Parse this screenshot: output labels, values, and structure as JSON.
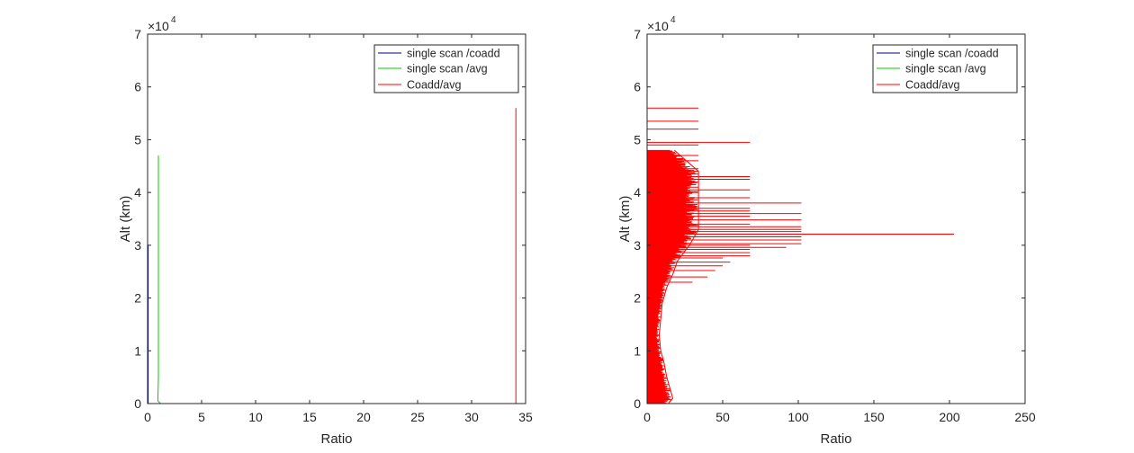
{
  "chart_data": [
    {
      "type": "line",
      "xlabel": "Ratio",
      "ylabel": "Alt (km)",
      "xlim": [
        0,
        35
      ],
      "ylim": [
        0,
        70000
      ],
      "xticks": [
        0,
        5,
        10,
        15,
        20,
        25,
        30,
        35
      ],
      "yticks": [
        0,
        10000,
        20000,
        30000,
        40000,
        50000,
        60000,
        70000
      ],
      "ytick_labels": [
        "0",
        "1",
        "2",
        "3",
        "4",
        "5",
        "6",
        "7"
      ],
      "y_exponent": {
        "base": "×10",
        "power": "4"
      },
      "grid": false,
      "legend_position": "top-right",
      "series": [
        {
          "name": "single scan /coadd",
          "color": "#00007f",
          "profile": [
            [
              0.05,
              0
            ],
            [
              0.05,
              10000
            ],
            [
              0.05,
              20000
            ],
            [
              0.05,
              30000
            ]
          ]
        },
        {
          "name": "single scan /avg",
          "color": "#00cc00",
          "profile": [
            [
              1.2,
              0
            ],
            [
              0.95,
              500
            ],
            [
              1.0,
              5000
            ],
            [
              1.0,
              15000
            ],
            [
              1.0,
              25000
            ],
            [
              1.0,
              35000
            ],
            [
              1.0,
              42000
            ],
            [
              1.0,
              47000
            ]
          ]
        },
        {
          "name": "Coadd/avg",
          "color": "#ff0000",
          "profile": [
            [
              34.1,
              0
            ],
            [
              34.1,
              10000
            ],
            [
              34.1,
              20000
            ],
            [
              34.1,
              30000
            ],
            [
              34.1,
              40000
            ],
            [
              34.1,
              50000
            ],
            [
              34.1,
              56000
            ]
          ]
        }
      ]
    },
    {
      "type": "line",
      "xlabel": "Ratio",
      "ylabel": "Alt (km)",
      "xlim": [
        0,
        250
      ],
      "ylim": [
        0,
        70000
      ],
      "xticks": [
        0,
        50,
        100,
        150,
        200,
        250
      ],
      "yticks": [
        0,
        10000,
        20000,
        30000,
        40000,
        50000,
        60000,
        70000
      ],
      "ytick_labels": [
        "0",
        "1",
        "2",
        "3",
        "4",
        "5",
        "6",
        "7"
      ],
      "y_exponent": {
        "base": "×10",
        "power": "4"
      },
      "grid": false,
      "legend_position": "top-right",
      "series": [
        {
          "name": "single scan /coadd",
          "color": "#00007f",
          "profile": [
            [
              0.5,
              0
            ],
            [
              0.5,
              10000
            ],
            [
              0.5,
              20000
            ],
            [
              0.5,
              26000
            ]
          ]
        },
        {
          "name": "single scan /avg",
          "color": "#00cc00",
          "profile": [
            [
              1.0,
              0
            ],
            [
              1.0,
              10000
            ],
            [
              1.0,
              20000
            ],
            [
              1.0,
              24000
            ]
          ]
        },
        {
          "name": "Coadd/avg",
          "color": "#ff0000",
          "envelope": [
            [
              14,
              0
            ],
            [
              17,
              1000
            ],
            [
              15,
              3000
            ],
            [
              13,
              5000
            ],
            [
              11,
              8000
            ],
            [
              9,
              10000
            ],
            [
              8,
              13000
            ],
            [
              9,
              16000
            ],
            [
              10,
              19000
            ],
            [
              13,
              22000
            ],
            [
              17,
              24500
            ],
            [
              20,
              27000
            ],
            [
              28,
              30000
            ],
            [
              34,
              33000
            ],
            [
              34,
              36000
            ],
            [
              34,
              40000
            ],
            [
              34,
              44000
            ],
            [
              18,
              48000
            ]
          ],
          "spikes": [
            [
              34,
              56000
            ],
            [
              34,
              53500
            ],
            [
              34,
              52000
            ],
            [
              68,
              49500
            ],
            [
              34,
              49000
            ],
            [
              34,
              47000
            ],
            [
              34,
              46000
            ],
            [
              34,
              44500
            ],
            [
              34,
              44000
            ],
            [
              34,
              43500
            ],
            [
              68,
              43000
            ],
            [
              68,
              42500
            ],
            [
              34,
              42000
            ],
            [
              34,
              41000
            ],
            [
              34,
              40000
            ],
            [
              68,
              40500
            ],
            [
              68,
              39000
            ],
            [
              102,
              38000
            ],
            [
              68,
              37000
            ],
            [
              68,
              36500
            ],
            [
              102,
              36000
            ],
            [
              68,
              35500
            ],
            [
              102,
              34800
            ],
            [
              68,
              34000
            ],
            [
              102,
              33500
            ],
            [
              102,
              33000
            ],
            [
              102,
              32600
            ],
            [
              203,
              32100
            ],
            [
              102,
              31600
            ],
            [
              102,
              31000
            ],
            [
              102,
              30300
            ],
            [
              68,
              30000
            ],
            [
              92,
              29600
            ],
            [
              68,
              29200
            ],
            [
              68,
              28600
            ],
            [
              68,
              28000
            ],
            [
              50,
              27600
            ],
            [
              55,
              26800
            ],
            [
              50,
              26100
            ],
            [
              45,
              25200
            ],
            [
              40,
              24000
            ],
            [
              30,
              23000
            ]
          ]
        }
      ]
    }
  ]
}
